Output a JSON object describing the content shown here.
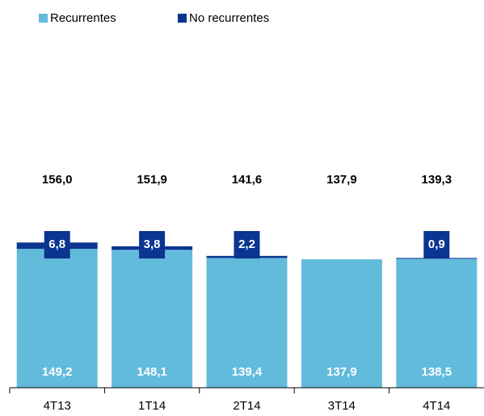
{
  "chart_data": {
    "type": "stacked_bar",
    "categories": [
      "4T13",
      "1T14",
      "2T14",
      "3T14",
      "4T14"
    ],
    "series": [
      {
        "name": "Recurrentes",
        "color": "#62bbdb",
        "values": [
          149.2,
          148.1,
          139.4,
          137.9,
          138.5
        ],
        "value_labels": [
          "149,2",
          "148,1",
          "139,4",
          "137,9",
          "138,5"
        ]
      },
      {
        "name": "No recurrentes",
        "color": "#0b3590",
        "values": [
          6.8,
          3.8,
          2.2,
          0,
          0.9
        ],
        "value_labels": [
          "6,8",
          "3,8",
          "2,2",
          null,
          "0,9"
        ]
      }
    ],
    "total_labels": [
      "156,0",
      "151,9",
      "141,6",
      "137,9",
      "139,3"
    ],
    "ylim": [
      0,
      400
    ],
    "legend": "top-left"
  }
}
